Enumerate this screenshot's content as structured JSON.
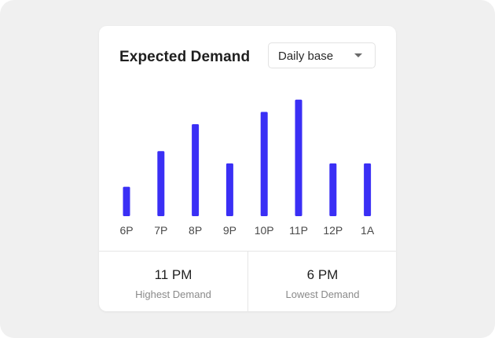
{
  "card": {
    "title": "Expected Demand",
    "dropdown": {
      "selected": "Daily base",
      "icon": "caret-down-icon"
    }
  },
  "chart_data": {
    "type": "bar",
    "categories": [
      "6P",
      "7P",
      "8P",
      "9P",
      "10P",
      "11P",
      "12P",
      "1A"
    ],
    "values": [
      2.4,
      5.3,
      7.5,
      4.3,
      8.5,
      9.5,
      4.3,
      4.3
    ],
    "ylim": [
      0,
      10
    ],
    "grid": false,
    "bar_color": "#3a2ff5"
  },
  "stats": {
    "highest": {
      "value": "11 PM",
      "label": "Highest Demand"
    },
    "lowest": {
      "value": "6 PM",
      "label": "Lowest Demand"
    }
  },
  "colors": {
    "accent": "#3a2ff5",
    "background": "#f0f0f0",
    "card": "#ffffff"
  }
}
